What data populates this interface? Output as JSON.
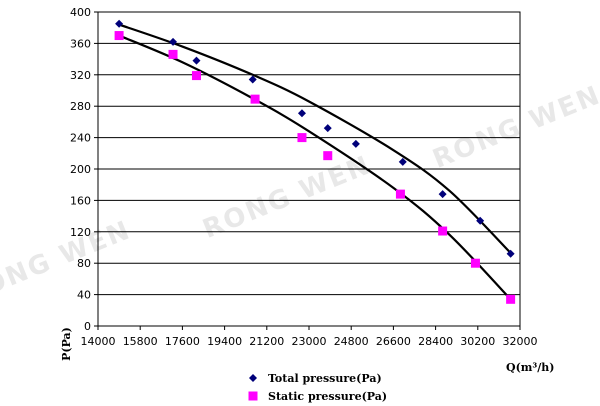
{
  "chart_data": {
    "type": "scatter",
    "xlabel": "Q(m³/h)",
    "ylabel": "P(Pa)",
    "xlim": [
      14000,
      32000
    ],
    "ylim": [
      0,
      400
    ],
    "x_ticks": [
      14000,
      15800,
      17600,
      19400,
      21200,
      23000,
      24800,
      26600,
      28400,
      30200,
      32000
    ],
    "y_ticks": [
      0,
      40,
      80,
      120,
      160,
      200,
      240,
      280,
      320,
      360,
      400
    ],
    "grid": true,
    "legend": "bottom",
    "series": [
      {
        "name": "Total pressure(Pa)",
        "marker": "diamond",
        "color": "#00007a",
        "points": [
          {
            "x": 14900,
            "y": 385
          },
          {
            "x": 17200,
            "y": 362
          },
          {
            "x": 20600,
            "y": 314
          },
          {
            "x": 18200,
            "y": 338
          },
          {
            "x": 22700,
            "y": 271
          },
          {
            "x": 23800,
            "y": 252
          },
          {
            "x": 25000,
            "y": 232
          },
          {
            "x": 27000,
            "y": 209
          },
          {
            "x": 28700,
            "y": 168
          },
          {
            "x": 30300,
            "y": 134
          },
          {
            "x": 31600,
            "y": 92
          }
        ]
      },
      {
        "name": "Static pressure(Pa)",
        "marker": "square",
        "color": "#ff00ff",
        "points": [
          {
            "x": 14900,
            "y": 370
          },
          {
            "x": 17200,
            "y": 346
          },
          {
            "x": 18200,
            "y": 319
          },
          {
            "x": 20700,
            "y": 289
          },
          {
            "x": 22700,
            "y": 240
          },
          {
            "x": 23800,
            "y": 217
          },
          {
            "x": 26900,
            "y": 168
          },
          {
            "x": 28700,
            "y": 121
          },
          {
            "x": 30100,
            "y": 80
          },
          {
            "x": 31600,
            "y": 34
          }
        ]
      }
    ],
    "fit_curves": [
      {
        "color": "#000000",
        "x": [
          14900,
          17600,
          20600,
          23000,
          26600,
          29000,
          31600
        ],
        "y": [
          384,
          356,
          320,
          286,
          224,
          172,
          93
        ]
      },
      {
        "color": "#000000",
        "x": [
          14900,
          17600,
          20600,
          23000,
          26600,
          29000,
          31600
        ],
        "y": [
          370,
          336,
          290,
          248,
          176,
          116,
          34
        ]
      }
    ],
    "watermark": "RONG WEN"
  }
}
